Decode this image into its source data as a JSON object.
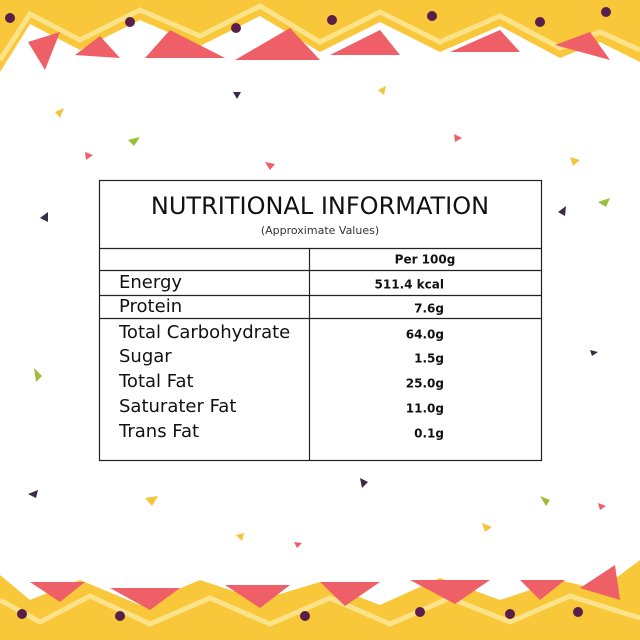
{
  "header": {
    "title": "NUTRITIONAL INFORMATION",
    "subtitle": "(Approximate Values)"
  },
  "table": {
    "column_header": "Per 100g",
    "rows": [
      [
        "Energy",
        "511.4 kcal"
      ],
      [
        "Protein",
        "7.6g"
      ],
      [
        "Total Carbohydrate",
        "64.0g"
      ],
      [
        "Sugar",
        "1.5g"
      ],
      [
        "Total Fat",
        "25.0g"
      ],
      [
        "Saturater Fat",
        "11.0g"
      ],
      [
        "Trans Fat",
        "0.1g"
      ]
    ]
  }
}
